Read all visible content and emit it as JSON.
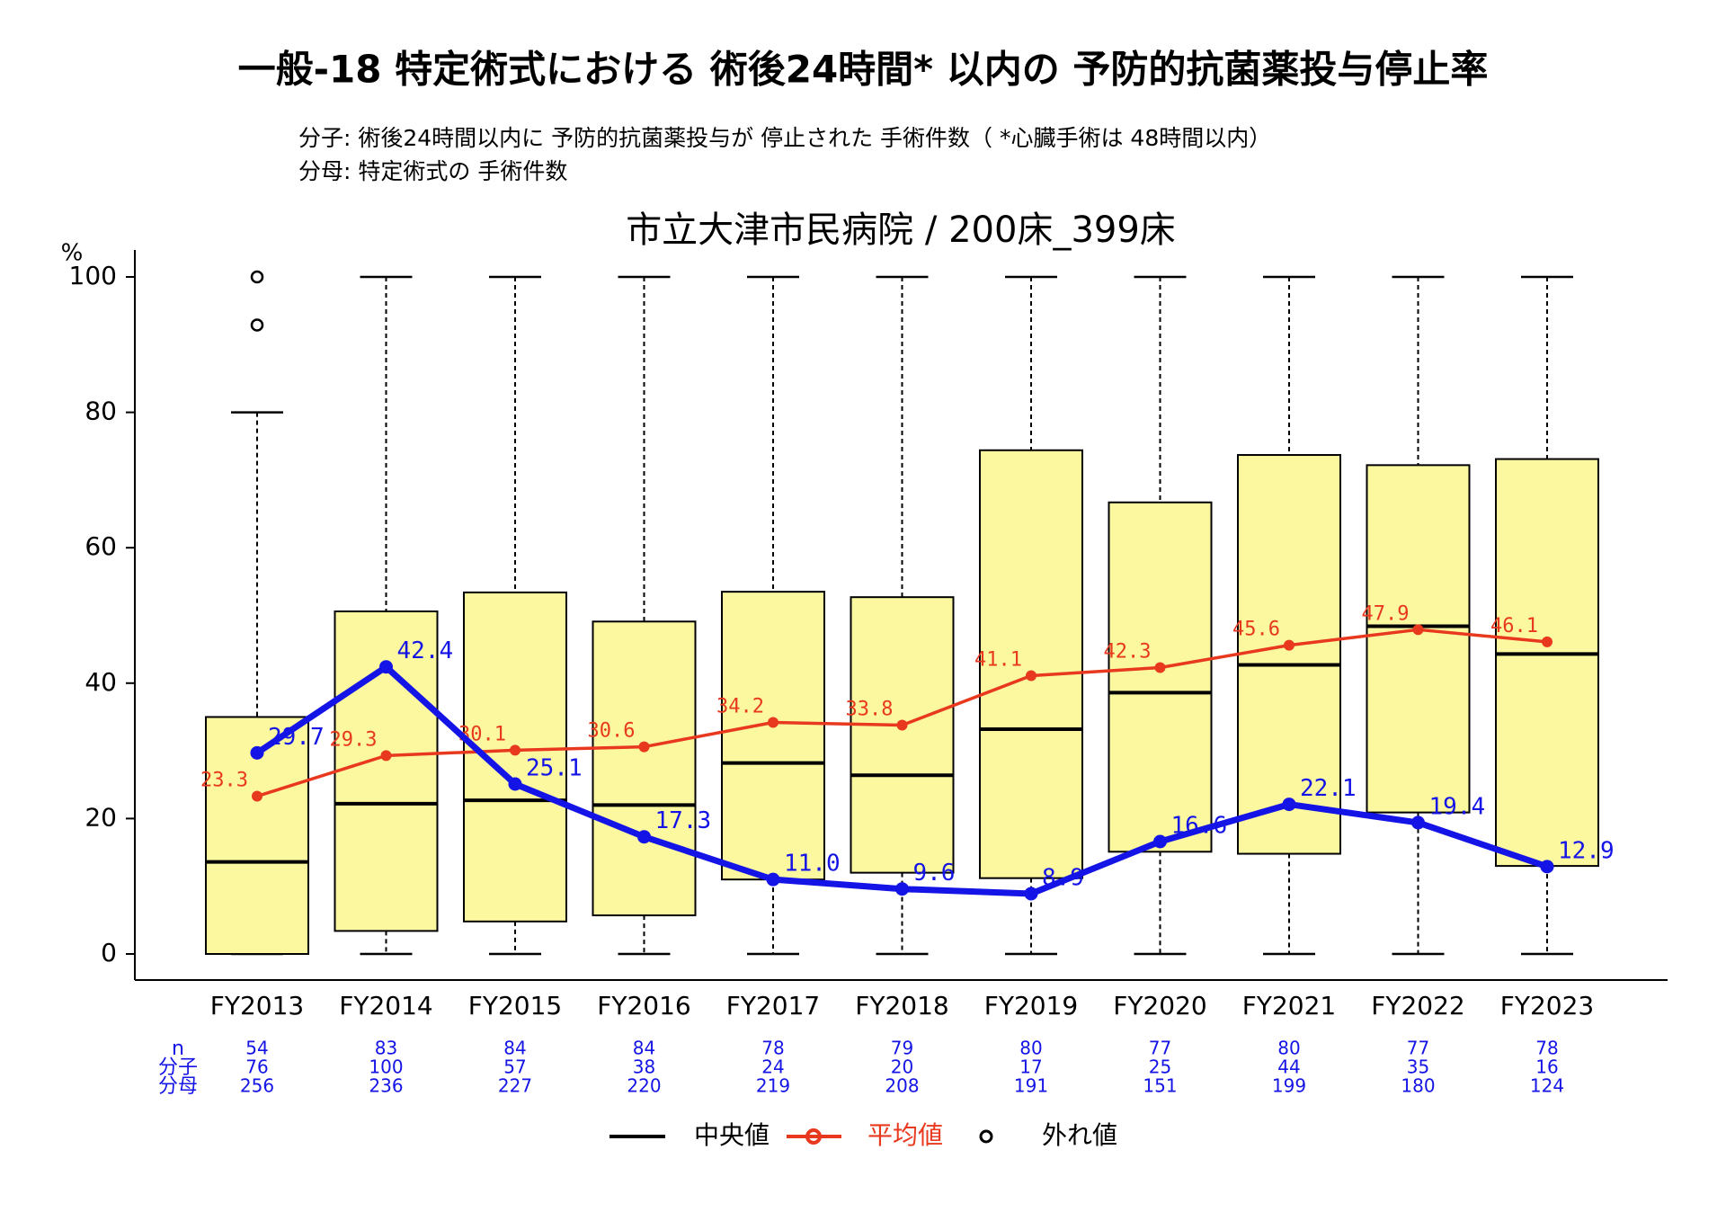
{
  "title": "一般-18 特定術式における 術後24時間* 以内の 予防的抗菌薬投与停止率",
  "subtitle": [
    "分子: 術後24時間以内に 予防的抗菌薬投与が 停止された 手術件数（ *心臓手術は 48時間以内）",
    "分母: 特定術式の 手術件数"
  ],
  "chart_data": {
    "type": "box",
    "title": "市立大津市民病院 / 200床_399床",
    "ylabel": "%",
    "categories": [
      "FY2013",
      "FY2014",
      "FY2015",
      "FY2016",
      "FY2017",
      "FY2018",
      "FY2019",
      "FY2020",
      "FY2021",
      "FY2022",
      "FY2023"
    ],
    "ylim": [
      0,
      100
    ],
    "yticks": [
      0,
      20,
      40,
      60,
      80,
      100
    ],
    "box_color": "#fbf8a0",
    "boxes": [
      {
        "low": 0,
        "q1": 0,
        "median": 13.6,
        "q3": 35.0,
        "high": 80
      },
      {
        "low": 0,
        "q1": 3.4,
        "median": 22.2,
        "q3": 50.6,
        "high": 100
      },
      {
        "low": 0,
        "q1": 4.8,
        "median": 22.7,
        "q3": 53.4,
        "high": 100
      },
      {
        "low": 0,
        "q1": 5.7,
        "median": 22.0,
        "q3": 49.1,
        "high": 100
      },
      {
        "low": 0,
        "q1": 11.0,
        "median": 28.2,
        "q3": 53.5,
        "high": 100
      },
      {
        "low": 0,
        "q1": 12.0,
        "median": 26.4,
        "q3": 52.7,
        "high": 100
      },
      {
        "low": 0,
        "q1": 11.2,
        "median": 33.2,
        "q3": 74.4,
        "high": 100
      },
      {
        "low": 0,
        "q1": 15.1,
        "median": 38.6,
        "q3": 66.7,
        "high": 100
      },
      {
        "low": 0,
        "q1": 14.8,
        "median": 42.7,
        "q3": 73.7,
        "high": 100
      },
      {
        "low": 0,
        "q1": 20.9,
        "median": 48.4,
        "q3": 72.2,
        "high": 100
      },
      {
        "low": 0,
        "q1": 13.0,
        "median": 44.3,
        "q3": 73.1,
        "high": 100
      }
    ],
    "outliers": [
      [
        100,
        92.9
      ],
      [],
      [],
      [],
      [],
      [],
      [],
      [],
      [],
      [],
      []
    ],
    "series": [
      {
        "name": "平均値",
        "color": "#e8391e",
        "values": [
          23.3,
          29.3,
          30.1,
          30.6,
          34.2,
          33.8,
          41.1,
          42.3,
          45.6,
          47.9,
          46.1
        ],
        "value_labels": [
          "23.3",
          "29.3",
          "30.1",
          "30.6",
          "34.2",
          "33.8",
          "41.1",
          "42.3",
          "45.6",
          "47.9",
          "46.1"
        ]
      },
      {
        "color": "#1414e6",
        "values": [
          29.7,
          42.4,
          25.1,
          17.3,
          11.0,
          9.6,
          8.9,
          16.6,
          22.1,
          19.4,
          12.9
        ],
        "value_labels": [
          "29.7",
          "42.4",
          "25.1",
          "17.3",
          "11.0",
          "9.6",
          "8.9",
          "16.6",
          "22.1",
          "19.4",
          "12.9"
        ]
      }
    ],
    "legend": {
      "median": "中央値",
      "outlier": "外れ値"
    },
    "table": {
      "row_labels": [
        "n",
        "分子",
        "分母"
      ],
      "rows": [
        [
          54,
          83,
          84,
          84,
          78,
          79,
          80,
          77,
          80,
          77,
          78
        ],
        [
          76,
          100,
          57,
          38,
          24,
          20,
          17,
          25,
          44,
          35,
          16
        ],
        [
          256,
          236,
          227,
          220,
          219,
          208,
          191,
          151,
          199,
          180,
          124
        ]
      ]
    }
  }
}
